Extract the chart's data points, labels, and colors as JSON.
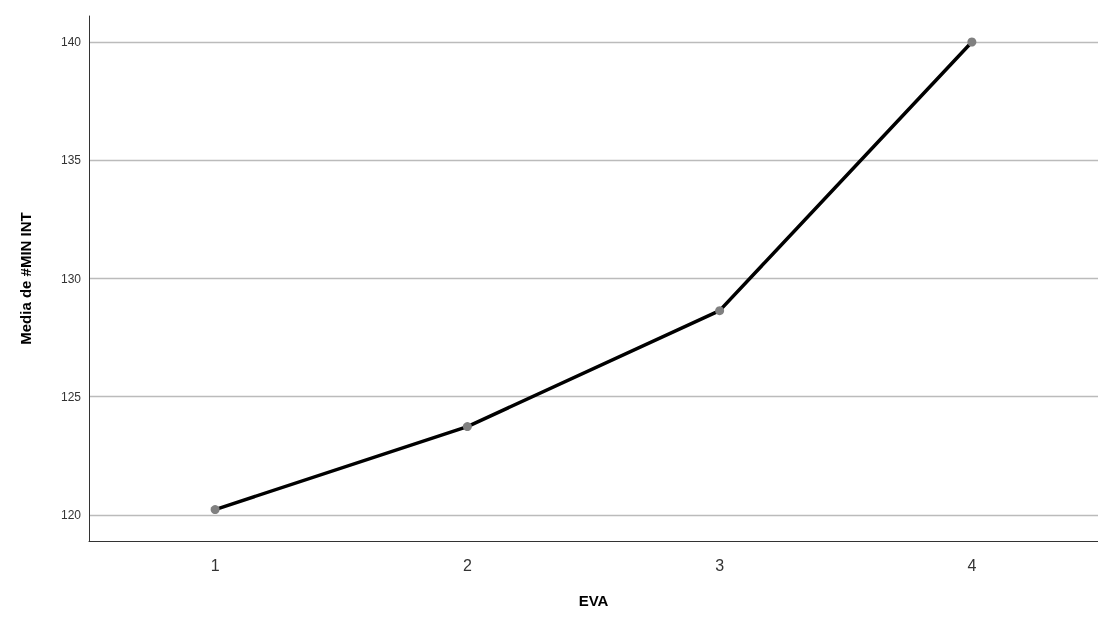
{
  "chart_data": {
    "type": "line",
    "xlabel": "EVA",
    "ylabel": "Media de #MIN INT",
    "categories": [
      "1",
      "2",
      "3",
      "4"
    ],
    "series": [
      {
        "color": "#000000",
        "values": [
          120.23,
          123.74,
          128.64,
          140.0
        ]
      }
    ],
    "ylim": [
      118.9,
      141.1
    ],
    "yticks": [
      120,
      125,
      130,
      135,
      140
    ],
    "grid": "y",
    "marker": "circle",
    "line_style": "solid"
  }
}
